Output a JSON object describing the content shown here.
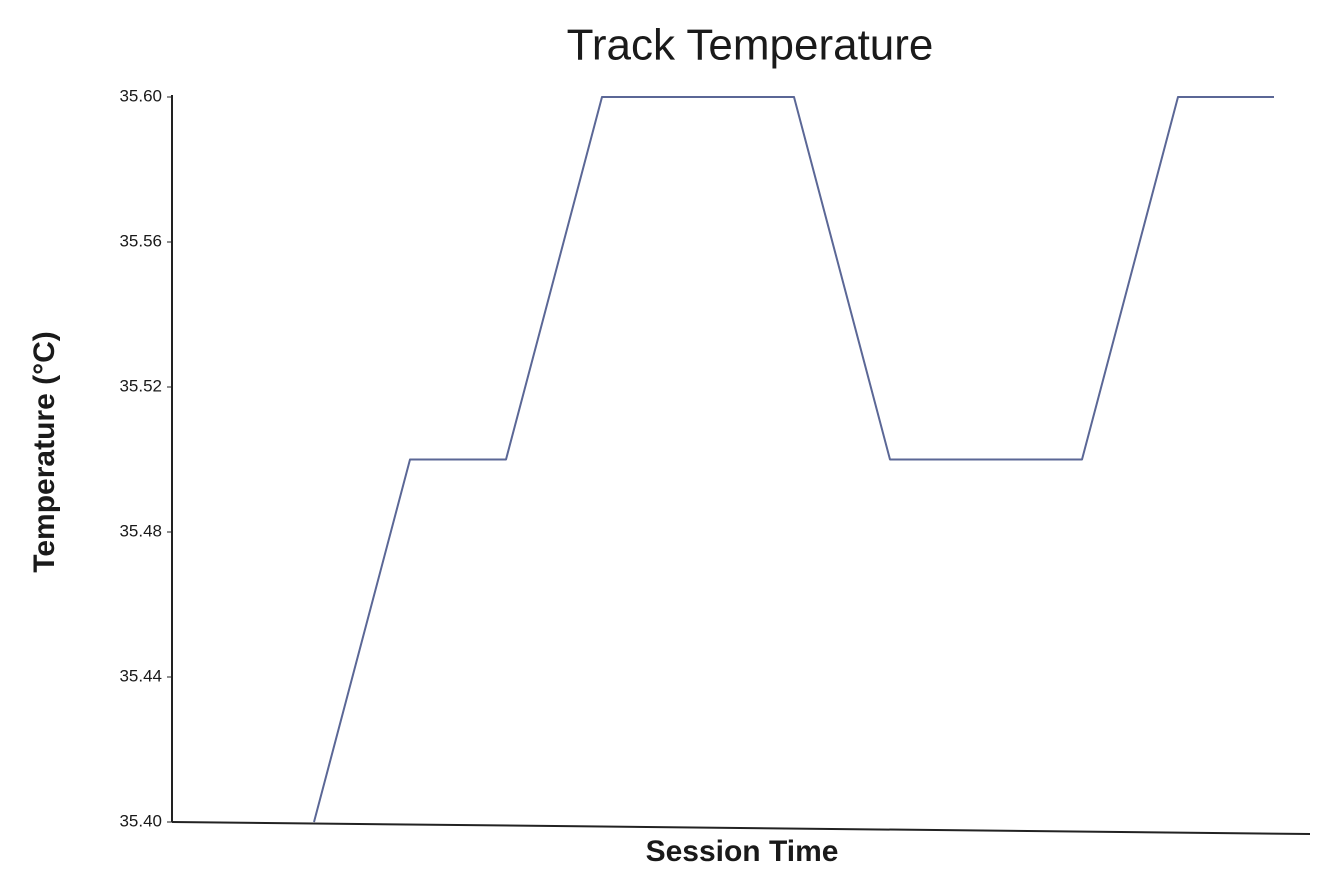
{
  "chart_data": {
    "type": "line",
    "title": "Track Temperature",
    "x_label": "Session Time",
    "y_label": "Temperature (°C)",
    "categories": [
      null,
      null,
      null,
      null,
      null,
      null,
      null,
      null,
      null,
      null,
      null
    ],
    "series": [
      {
        "name": null,
        "color": "#5b6796",
        "values": [
          35.4,
          35.5,
          35.5,
          35.6,
          35.6,
          35.6,
          35.5,
          35.5,
          35.5,
          35.6,
          35.6
        ]
      }
    ],
    "ylim": [
      35.4,
      35.6
    ],
    "yticks": [
      {
        "value": 35.4,
        "label": "35.40"
      },
      {
        "value": 35.44,
        "label": "35.44"
      },
      {
        "value": 35.48,
        "label": "35.48"
      },
      {
        "value": 35.52,
        "label": "35.52"
      },
      {
        "value": 35.56,
        "label": "35.56"
      },
      {
        "value": 35.6,
        "label": "35.60"
      }
    ],
    "grid": false
  }
}
